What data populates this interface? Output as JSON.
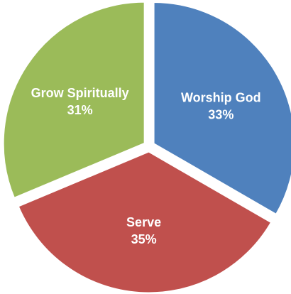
{
  "chart_data": {
    "type": "pie",
    "slices": [
      {
        "label": "Worship God",
        "value": 33,
        "value_label": "33%",
        "color": "#4f81bd"
      },
      {
        "label": "Serve",
        "value": 35,
        "value_label": "35%",
        "color": "#c0504d"
      },
      {
        "label": "Grow Spiritually",
        "value": 31,
        "value_label": "31%",
        "color": "#9bbb59"
      }
    ],
    "exploded": true,
    "legend": "none",
    "labels_inside_slices": true
  }
}
